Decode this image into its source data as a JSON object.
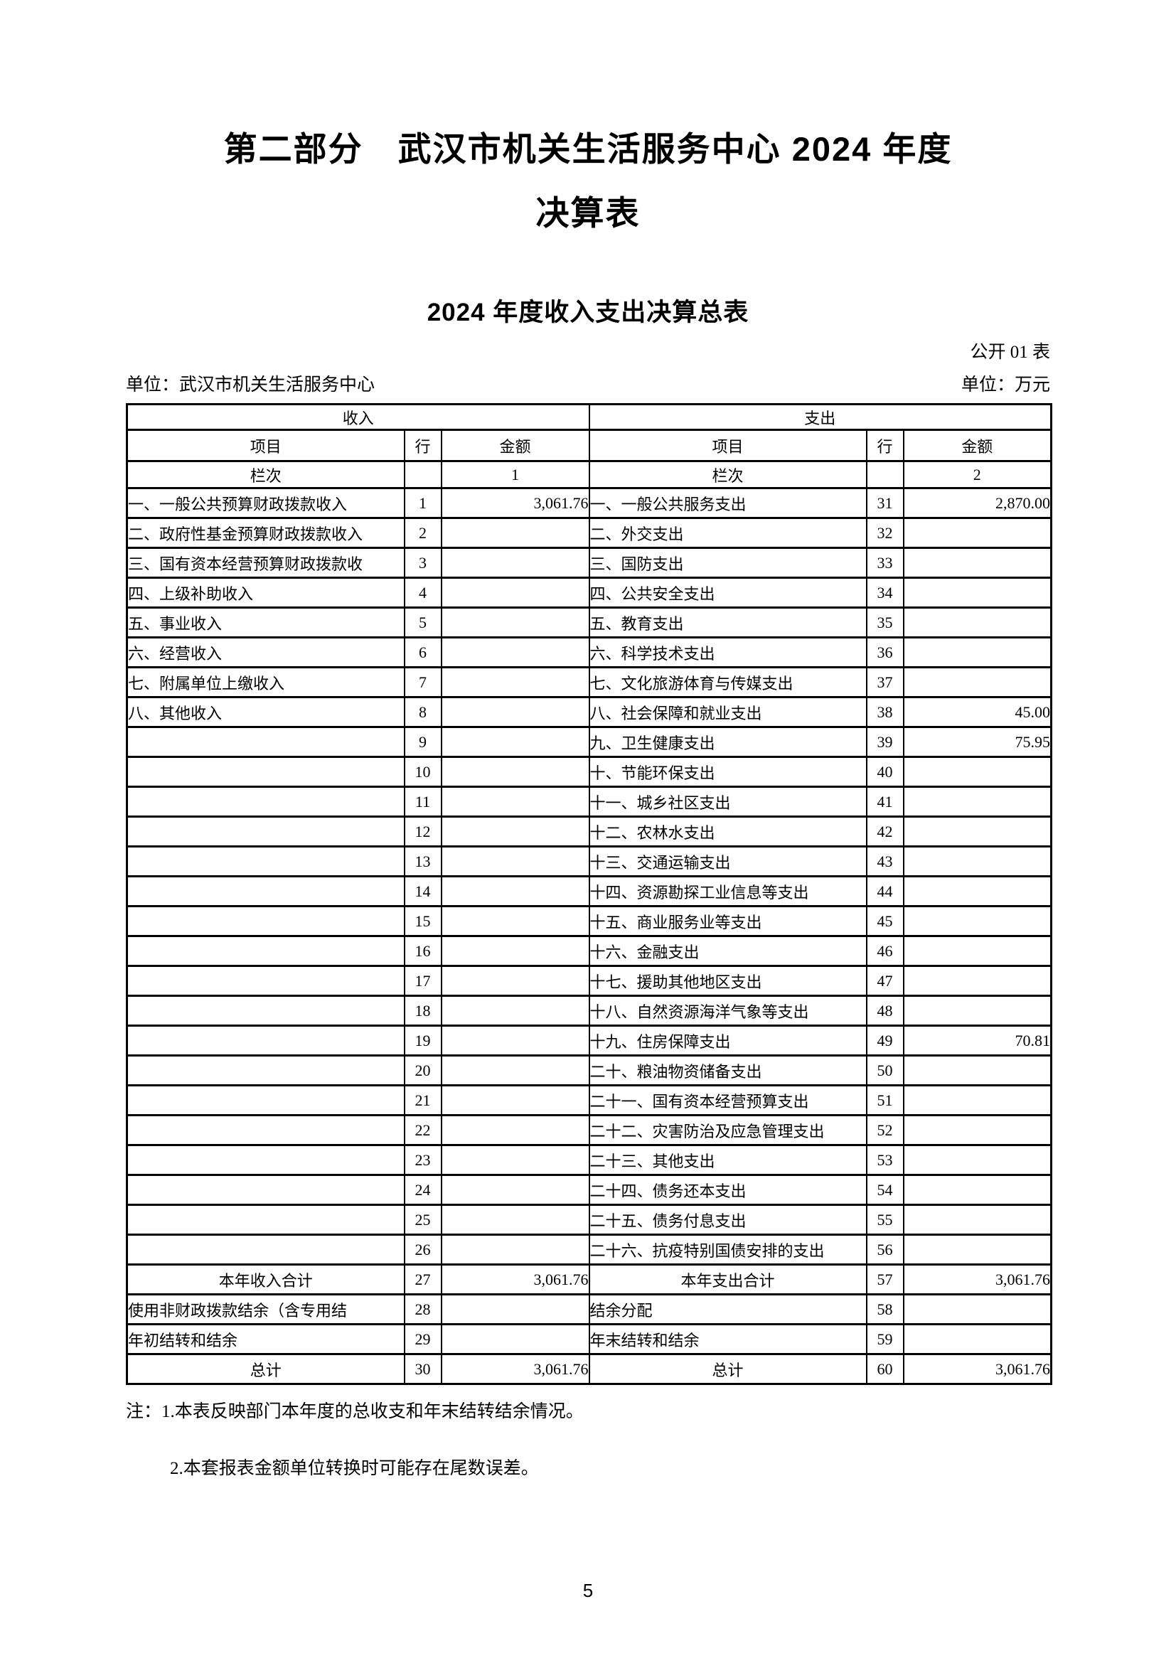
{
  "page": {
    "title_line1": "第二部分　武汉市机关生活服务中心 2024 年度",
    "title_line2": "决算表",
    "subtitle": "2024 年度收入支出决算总表",
    "table_tag": "公开 01 表",
    "unit_left": "单位：武汉市机关生活服务中心",
    "unit_right": "单位：万元",
    "note1": "注：1.本表反映部门本年度的总收支和年末结转结余情况。",
    "note2": "2.本套报表金额单位转换时可能存在尾数误差。",
    "page_number": "5"
  },
  "table": {
    "income_header": "收入",
    "expense_header": "支出",
    "col_item": "项目",
    "col_line": "行",
    "col_amount": "金额",
    "lanci_label": "栏次",
    "income_col_index": "1",
    "expense_col_index": "2",
    "rows": [
      {
        "l_item": "一、一般公共预算财政拨款收入",
        "l_row": "1",
        "l_amt": "3,061.76",
        "r_item": "一、一般公共服务支出",
        "r_row": "31",
        "r_amt": "2,870.00",
        "strong": false
      },
      {
        "l_item": "二、政府性基金预算财政拨款收入",
        "l_row": "2",
        "l_amt": "",
        "r_item": "二、外交支出",
        "r_row": "32",
        "r_amt": "",
        "strong": false
      },
      {
        "l_item": "三、国有资本经营预算财政拨款收",
        "l_row": "3",
        "l_amt": "",
        "r_item": "三、国防支出",
        "r_row": "33",
        "r_amt": "",
        "strong": false
      },
      {
        "l_item": "四、上级补助收入",
        "l_row": "4",
        "l_amt": "",
        "r_item": "四、公共安全支出",
        "r_row": "34",
        "r_amt": "",
        "strong": false
      },
      {
        "l_item": "五、事业收入",
        "l_row": "5",
        "l_amt": "",
        "r_item": "五、教育支出",
        "r_row": "35",
        "r_amt": "",
        "strong": false
      },
      {
        "l_item": "六、经营收入",
        "l_row": "6",
        "l_amt": "",
        "r_item": "六、科学技术支出",
        "r_row": "36",
        "r_amt": "",
        "strong": false
      },
      {
        "l_item": "七、附属单位上缴收入",
        "l_row": "7",
        "l_amt": "",
        "r_item": "七、文化旅游体育与传媒支出",
        "r_row": "37",
        "r_amt": "",
        "strong": false
      },
      {
        "l_item": "八、其他收入",
        "l_row": "8",
        "l_amt": "",
        "r_item": "八、社会保障和就业支出",
        "r_row": "38",
        "r_amt": "45.00",
        "strong": false
      },
      {
        "l_item": "",
        "l_row": "9",
        "l_amt": "",
        "r_item": "九、卫生健康支出",
        "r_row": "39",
        "r_amt": "75.95",
        "strong": false
      },
      {
        "l_item": "",
        "l_row": "10",
        "l_amt": "",
        "r_item": "十、节能环保支出",
        "r_row": "40",
        "r_amt": "",
        "strong": false
      },
      {
        "l_item": "",
        "l_row": "11",
        "l_amt": "",
        "r_item": "十一、城乡社区支出",
        "r_row": "41",
        "r_amt": "",
        "strong": false
      },
      {
        "l_item": "",
        "l_row": "12",
        "l_amt": "",
        "r_item": "十二、农林水支出",
        "r_row": "42",
        "r_amt": "",
        "strong": false
      },
      {
        "l_item": "",
        "l_row": "13",
        "l_amt": "",
        "r_item": "十三、交通运输支出",
        "r_row": "43",
        "r_amt": "",
        "strong": false
      },
      {
        "l_item": "",
        "l_row": "14",
        "l_amt": "",
        "r_item": "十四、资源勘探工业信息等支出",
        "r_row": "44",
        "r_amt": "",
        "strong": false
      },
      {
        "l_item": "",
        "l_row": "15",
        "l_amt": "",
        "r_item": "十五、商业服务业等支出",
        "r_row": "45",
        "r_amt": "",
        "strong": false
      },
      {
        "l_item": "",
        "l_row": "16",
        "l_amt": "",
        "r_item": "十六、金融支出",
        "r_row": "46",
        "r_amt": "",
        "strong": false
      },
      {
        "l_item": "",
        "l_row": "17",
        "l_amt": "",
        "r_item": "十七、援助其他地区支出",
        "r_row": "47",
        "r_amt": "",
        "strong": false
      },
      {
        "l_item": "",
        "l_row": "18",
        "l_amt": "",
        "r_item": "十八、自然资源海洋气象等支出",
        "r_row": "48",
        "r_amt": "",
        "strong": false
      },
      {
        "l_item": "",
        "l_row": "19",
        "l_amt": "",
        "r_item": "十九、住房保障支出",
        "r_row": "49",
        "r_amt": "70.81",
        "strong": false
      },
      {
        "l_item": "",
        "l_row": "20",
        "l_amt": "",
        "r_item": "二十、粮油物资储备支出",
        "r_row": "50",
        "r_amt": "",
        "strong": false
      },
      {
        "l_item": "",
        "l_row": "21",
        "l_amt": "",
        "r_item": "二十一、国有资本经营预算支出",
        "r_row": "51",
        "r_amt": "",
        "strong": false
      },
      {
        "l_item": "",
        "l_row": "22",
        "l_amt": "",
        "r_item": "二十二、灾害防治及应急管理支出",
        "r_row": "52",
        "r_amt": "",
        "strong": false
      },
      {
        "l_item": "",
        "l_row": "23",
        "l_amt": "",
        "r_item": "二十三、其他支出",
        "r_row": "53",
        "r_amt": "",
        "strong": false
      },
      {
        "l_item": "",
        "l_row": "24",
        "l_amt": "",
        "r_item": "二十四、债务还本支出",
        "r_row": "54",
        "r_amt": "",
        "strong": false
      },
      {
        "l_item": "",
        "l_row": "25",
        "l_amt": "",
        "r_item": "二十五、债务付息支出",
        "r_row": "55",
        "r_amt": "",
        "strong": false
      },
      {
        "l_item": "",
        "l_row": "26",
        "l_amt": "",
        "r_item": "二十六、抗疫特别国债安排的支出",
        "r_row": "56",
        "r_amt": "",
        "strong": false
      },
      {
        "l_item": "本年收入合计",
        "l_row": "27",
        "l_amt": "3,061.76",
        "r_item": "本年支出合计",
        "r_row": "57",
        "r_amt": "3,061.76",
        "strong": true
      },
      {
        "l_item": "使用非财政拨款结余（含专用结",
        "l_row": "28",
        "l_amt": "",
        "r_item": "结余分配",
        "r_row": "58",
        "r_amt": "",
        "strong": false
      },
      {
        "l_item": "年初结转和结余",
        "l_row": "29",
        "l_amt": "",
        "r_item": "年末结转和结余",
        "r_row": "59",
        "r_amt": "",
        "strong": false
      },
      {
        "l_item": "总计",
        "l_row": "30",
        "l_amt": "3,061.76",
        "r_item": "总计",
        "r_row": "60",
        "r_amt": "3,061.76",
        "strong": true
      }
    ]
  }
}
